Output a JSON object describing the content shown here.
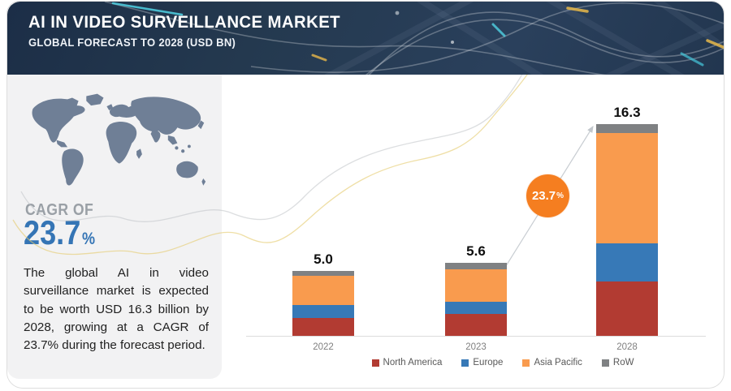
{
  "header": {
    "title": "AI IN VIDEO SURVEILLANCE MARKET",
    "subtitle": "GLOBAL FORECAST TO 2028 (USD BN)"
  },
  "sidebar": {
    "cagr_label": "CAGR OF",
    "cagr_value": "23.7",
    "cagr_unit": "%",
    "description": "The global AI in video surveillance market is expected to be worth USD 16.3 billion by 2028, growing at a CAGR of 23.7% during the forecast period."
  },
  "annotation": {
    "cagr_badge_value": "23.7",
    "cagr_badge_unit": "%"
  },
  "chart_data": {
    "type": "bar",
    "stacked": true,
    "title": "AI in video surveillance market size by region",
    "unit": "USD BN",
    "categories": [
      "2022",
      "2023",
      "2028"
    ],
    "totals": [
      5.0,
      5.6,
      16.3
    ],
    "totals_display": [
      "5.0",
      "5.6",
      "16.3"
    ],
    "series": [
      {
        "name": "North America",
        "color": "#b23b32",
        "values": [
          1.4,
          1.7,
          4.2
        ]
      },
      {
        "name": "Europe",
        "color": "#3779b7",
        "values": [
          1.0,
          0.9,
          2.9
        ]
      },
      {
        "name": "Asia Pacific",
        "color": "#f99b4e",
        "values": [
          2.25,
          2.55,
          8.5
        ]
      },
      {
        "name": "RoW",
        "color": "#7f8183",
        "values": [
          0.35,
          0.45,
          0.7
        ]
      }
    ],
    "ylim": [
      0,
      18
    ],
    "grid": false,
    "legend_position": "bottom",
    "annotation_arrow": "from 2023 bar to 2028 bar with CAGR badge 23.7%"
  },
  "colors": {
    "header_bg": "#22364f",
    "sidebar_bg": "#f2f2f3",
    "map": "#6f7f96",
    "accent_blue": "#3575b5",
    "badge_orange": "#f57e20",
    "axis_line": "#dcdcdc",
    "axis_label": "#7f7f7f",
    "legend_text": "#595959"
  }
}
